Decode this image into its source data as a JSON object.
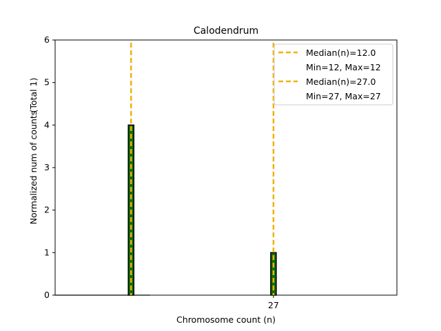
{
  "chart_data": {
    "type": "bar",
    "title": "Calodendrum",
    "xlabel": "Chromosome count (n)",
    "ylabel": "Normalized num of counts",
    "ylabel_note": "(Total 1)",
    "xlim": [
      4,
      40
    ],
    "ylim": [
      0,
      6
    ],
    "yticks": [
      0,
      1,
      2,
      3,
      4,
      5,
      6
    ],
    "xticks": [
      27
    ],
    "bar_color": "#0a6e0a",
    "bar_edge_color": "#000000",
    "median_color": "#f2b00a",
    "bars": [
      {
        "x": 12,
        "value": 4
      },
      {
        "x": 27,
        "value": 1
      }
    ],
    "medians": [
      {
        "value": 12.0,
        "label": "Median(n)=12.0",
        "range_label": "Min=12, Max=12"
      },
      {
        "value": 27.0,
        "label": "Median(n)=27.0",
        "range_label": "Min=27, Max=27"
      }
    ],
    "baseline_segment": [
      4,
      14
    ]
  }
}
